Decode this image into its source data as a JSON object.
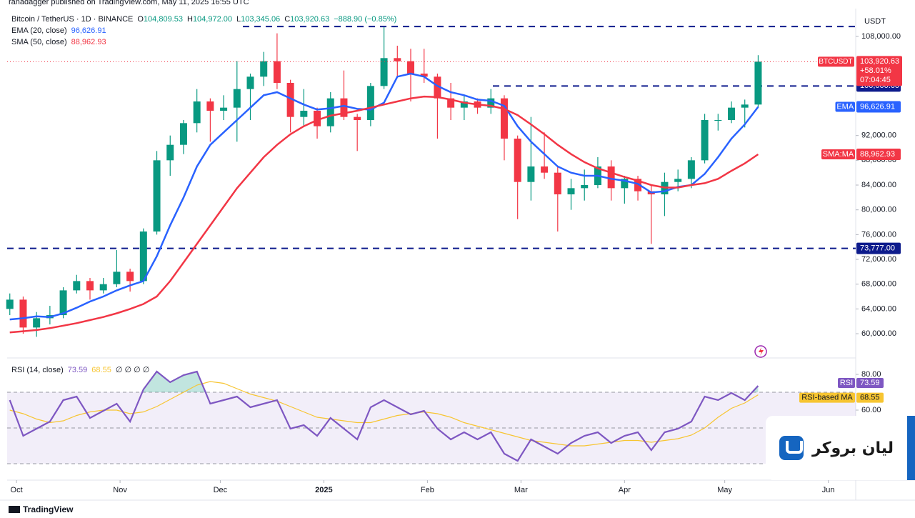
{
  "header": {
    "published": "ranadagger published on TradingView.com, May 11, 2025 16:55 UTC",
    "symbol": "Bitcoin / TetherUS · 1D · BINANCE",
    "ohlc": [
      [
        "O",
        "104,809.53"
      ],
      [
        "H",
        "104,972.00"
      ],
      [
        "L",
        "103,345.06"
      ],
      [
        "C",
        "103,920.63"
      ]
    ],
    "change": "−888.90 (−0.85%)",
    "currency": "USDT",
    "footer": "TradingView"
  },
  "watermark": "لیان بروکر",
  "chart_data": [
    {
      "type": "candlestick",
      "categories": [
        null,
        null,
        null,
        null,
        null,
        null,
        null,
        null,
        null,
        null,
        null,
        null,
        null,
        null,
        null,
        null,
        null,
        null,
        null,
        null,
        null,
        null,
        null,
        null,
        null,
        null,
        null,
        null,
        null,
        null,
        null,
        null,
        null,
        null,
        null,
        null,
        null,
        null,
        null,
        null,
        null,
        null,
        null,
        null,
        null,
        null,
        null,
        null,
        null,
        null,
        null,
        null,
        null,
        null,
        null,
        null,
        null
      ],
      "open": [
        64000,
        65500,
        61000,
        62500,
        63000,
        67000,
        68500,
        67000,
        68000,
        70000,
        68500,
        76500,
        88000,
        90500,
        94000,
        97500,
        96000,
        96500,
        99500,
        101500,
        104000,
        100500,
        95000,
        96000,
        93500,
        98000,
        95000,
        94500,
        100000,
        104500,
        104000,
        102000,
        101500,
        98000,
        96500,
        97500,
        96500,
        98000,
        91500,
        84500,
        87000,
        86000,
        82500,
        83500,
        84000,
        87000,
        83500,
        85000,
        83000,
        82500,
        84500,
        85000,
        88000,
        94500,
        94500,
        96500,
        97000
      ],
      "high": [
        66500,
        66000,
        63500,
        64500,
        67500,
        69500,
        69000,
        69000,
        73500,
        70500,
        77000,
        89500,
        92000,
        94500,
        99500,
        98000,
        98500,
        104000,
        102000,
        105500,
        108500,
        101000,
        99500,
        96500,
        99000,
        102500,
        95500,
        100500,
        109500,
        106500,
        106000,
        106000,
        102000,
        100500,
        98500,
        98000,
        99500,
        98500,
        92000,
        95000,
        92500,
        87000,
        85000,
        86500,
        88500,
        88000,
        85500,
        85500,
        84000,
        86000,
        86500,
        88500,
        95500,
        95500,
        97500,
        97800,
        104972
      ],
      "low": [
        63000,
        60000,
        59500,
        61500,
        62500,
        66500,
        65500,
        66500,
        67500,
        66800,
        68000,
        76000,
        85500,
        89000,
        92500,
        91000,
        94500,
        91000,
        94500,
        100000,
        99500,
        92500,
        93500,
        91500,
        92500,
        94500,
        89500,
        93500,
        99500,
        101500,
        97500,
        100500,
        91500,
        94500,
        94500,
        95500,
        95500,
        88000,
        78500,
        81500,
        85000,
        76500,
        80000,
        81500,
        83500,
        81500,
        81000,
        81500,
        74500,
        79000,
        83000,
        83500,
        87500,
        92800,
        94000,
        93300,
        96500
      ],
      "close": [
        65500,
        61000,
        62500,
        63000,
        67000,
        68500,
        67000,
        68000,
        70000,
        68500,
        76500,
        88000,
        90500,
        94000,
        97500,
        96000,
        96500,
        99500,
        101500,
        104000,
        100500,
        95000,
        96000,
        93500,
        98000,
        95000,
        94500,
        100000,
        104500,
        104000,
        102000,
        101500,
        98000,
        96500,
        97500,
        96500,
        98000,
        91500,
        84500,
        87000,
        86000,
        82500,
        83500,
        84000,
        87000,
        83500,
        85000,
        83000,
        82500,
        84500,
        85000,
        88000,
        94500,
        94500,
        96500,
        97000,
        103920.63
      ],
      "up_color": "#089981",
      "down_color": "#f23645",
      "series": [
        {
          "name": "EMA (20, close)",
          "axis_label": "EMA",
          "legend_value": "96,626.91",
          "color": "#2962ff",
          "values": [
            62300,
            62500,
            62800,
            62700,
            63300,
            64200,
            65200,
            66000,
            67000,
            67800,
            68500,
            72500,
            77500,
            82000,
            87000,
            90500,
            92500,
            94500,
            96500,
            98500,
            99000,
            98000,
            97000,
            96200,
            96400,
            96800,
            96300,
            96200,
            97300,
            101500,
            102000,
            101500,
            100000,
            99000,
            98500,
            97800,
            97600,
            96800,
            93500,
            91000,
            89000,
            87000,
            86000,
            85500,
            85500,
            85000,
            84700,
            84200,
            82800,
            83000,
            83700,
            84000,
            85800,
            88500,
            91500,
            93800,
            96626.91
          ]
        },
        {
          "name": "SMA (50, close)",
          "axis_label": "SMA:MA",
          "legend_value": "88,962.93",
          "color": "#f23645",
          "values": [
            60200,
            60400,
            60600,
            60900,
            61300,
            61700,
            62200,
            62700,
            63300,
            64000,
            64800,
            66000,
            68500,
            71500,
            74500,
            77500,
            80500,
            83500,
            86000,
            88500,
            90500,
            92200,
            93500,
            94500,
            95200,
            95600,
            96000,
            96500,
            97000,
            97500,
            98000,
            98300,
            98200,
            97800,
            97300,
            97000,
            96800,
            96300,
            95300,
            93800,
            92200,
            90500,
            89000,
            87700,
            86700,
            86000,
            85300,
            84700,
            84000,
            83600,
            83600,
            84000,
            84300,
            85000,
            86300,
            87500,
            88962.93
          ]
        }
      ],
      "last_price": {
        "name": "BTCUSDT",
        "value_label": "103,920.63",
        "change": "+58.01%",
        "countdown": "07:04:45"
      },
      "levels": [
        109600,
        {
          "value": 100000,
          "label": "100,000.00"
        },
        {
          "value": 73777,
          "label": "73,777.00"
        }
      ],
      "xlim": [
        -0.2,
        63.3
      ],
      "xticks": [
        {
          "value": 0.5,
          "label": "Oct"
        },
        {
          "value": 8.25,
          "label": "Nov"
        },
        {
          "value": 15.75,
          "label": "Dec"
        },
        {
          "value": 23.5,
          "label": "2025"
        },
        {
          "value": 31.25,
          "label": "Feb"
        },
        {
          "value": 38.25,
          "label": "Mar"
        },
        {
          "value": 46,
          "label": "Apr"
        },
        {
          "value": 53.5,
          "label": "May"
        },
        {
          "value": 61.25,
          "label": "Jun"
        }
      ],
      "ylim": [
        56200,
        112150
      ],
      "yticks": [
        {
          "value": 60000,
          "label": "60,000.00"
        },
        {
          "value": 64000,
          "label": "64,000.00"
        },
        {
          "value": 68000,
          "label": "68,000.00"
        },
        {
          "value": 72000,
          "label": "72,000.00"
        },
        {
          "value": 76000,
          "label": "76,000.00"
        },
        {
          "value": 80000,
          "label": "80,000.00"
        },
        {
          "value": 84000,
          "label": "84,000.00"
        },
        {
          "value": 88000,
          "label": "88,000.00"
        },
        {
          "value": 92000,
          "label": "92,000.00"
        },
        {
          "value": 108000,
          "label": "108,000.00"
        }
      ]
    },
    {
      "type": "line",
      "title": "RSI (14, close)",
      "legend_extra": "∅ ∅ ∅ ∅",
      "series": [
        {
          "name": "RSI",
          "color": "#7e57c2",
          "value_label": "73.59",
          "values": [
            65.6,
            45.6,
            49.6,
            53.6,
            65.6,
            67.6,
            55.6,
            59.6,
            63.6,
            53.6,
            71.6,
            81.6,
            75.6,
            79.6,
            81.6,
            63.6,
            65.6,
            67.6,
            61.6,
            63.6,
            65.6,
            49.6,
            51.6,
            45.6,
            55.6,
            49.6,
            43.6,
            61.6,
            65.6,
            61.6,
            57.6,
            59.6,
            49.6,
            43.6,
            47.6,
            43.6,
            47.6,
            35.6,
            31.6,
            43.6,
            39.6,
            35.6,
            41.6,
            45.6,
            47.6,
            41.6,
            45.6,
            47.6,
            37.6,
            47.6,
            49.6,
            53.6,
            67.6,
            65.6,
            69.6,
            65.6,
            73.59
          ]
        },
        {
          "name": "RSI-based MA",
          "color": "#f7c531",
          "value_label": "68.55",
          "values": [
            60,
            58,
            55,
            53,
            54,
            57,
            59,
            60,
            60,
            58,
            59,
            62,
            66,
            70,
            74,
            76,
            75,
            72,
            69,
            67,
            65,
            62,
            59,
            56,
            55,
            54,
            53,
            53,
            55,
            57,
            58,
            59,
            58,
            56,
            53,
            51,
            49,
            47,
            45,
            43,
            42,
            41,
            40,
            40,
            41,
            42,
            43,
            43,
            42,
            43,
            44,
            46,
            50,
            56,
            61,
            64,
            68.55
          ]
        }
      ],
      "bands": [
        70,
        50,
        30
      ],
      "band_fill": "#7e57c2",
      "overbought_fill": "#089981",
      "ylim": [
        21.6,
        87.6
      ],
      "yticks": [
        {
          "value": 80,
          "label": "80.00"
        },
        {
          "value": 60,
          "label": "60.00"
        }
      ]
    }
  ]
}
